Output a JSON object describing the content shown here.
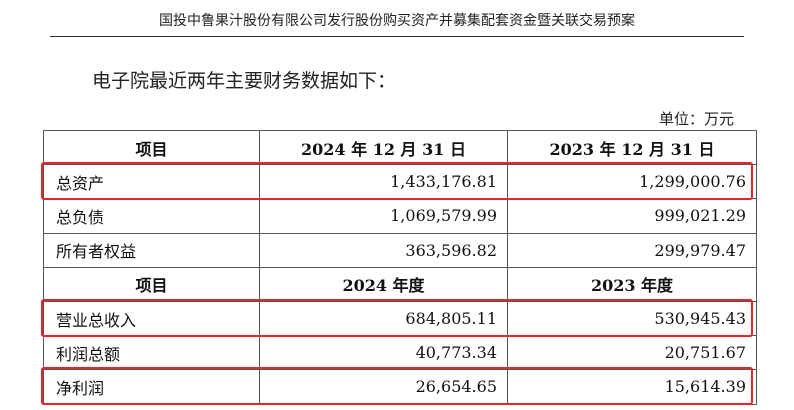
{
  "header": {
    "title": "国投中鲁果汁股份有限公司发行股份购买资产并募集配套资金暨关联交易预案"
  },
  "intro": "电子院最近两年主要财务数据如下：",
  "unit": "单位：万元",
  "table": {
    "balance_header": [
      "项目",
      "2024 年 12 月 31 日",
      "2023 年 12 月 31 日"
    ],
    "balance_rows": [
      {
        "label": "总资产",
        "v2024": "1,433,176.81",
        "v2023": "1,299,000.76"
      },
      {
        "label": "总负债",
        "v2024": "1,069,579.99",
        "v2023": "999,021.29"
      },
      {
        "label": "所有者权益",
        "v2024": "363,596.82",
        "v2023": "299,979.47"
      }
    ],
    "income_header": [
      "项目",
      "2024 年度",
      "2023 年度"
    ],
    "income_rows": [
      {
        "label": "营业总收入",
        "v2024": "684,805.11",
        "v2023": "530,945.43"
      },
      {
        "label": "利润总额",
        "v2024": "40,773.34",
        "v2023": "20,751.67"
      },
      {
        "label": "净利润",
        "v2024": "26,654.65",
        "v2023": "15,614.39"
      }
    ]
  },
  "highlight_color": "#e8242c"
}
